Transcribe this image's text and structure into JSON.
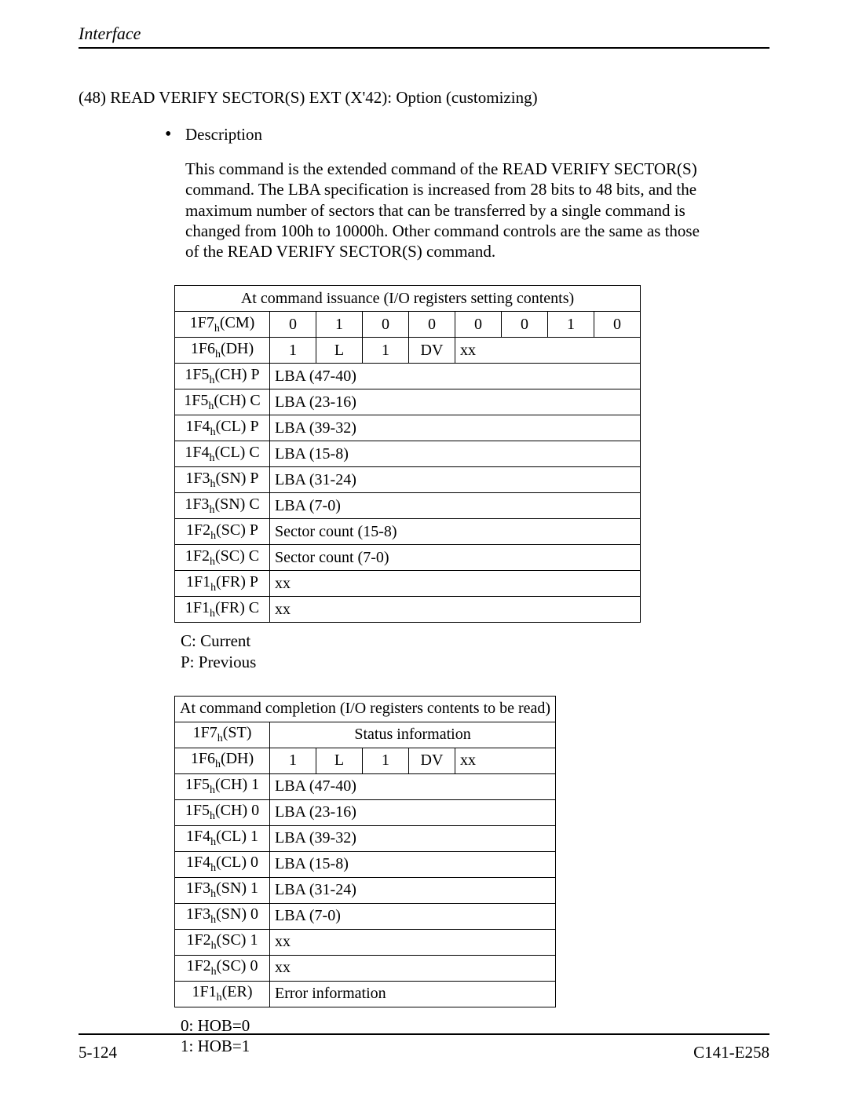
{
  "header": {
    "title": "Interface"
  },
  "section": {
    "heading": "(48)  READ VERIFY SECTOR(S) EXT (X'42):  Option (customizing)",
    "bullet_label": "Description",
    "paragraph": "This command is the extended command of the READ VERIFY SECTOR(S) command.  The LBA specification is increased from 28 bits to 48 bits, and the maximum number of sectors that can be transferred by a single command is changed from 100h to 10000h.  Other command controls are the same as those of the READ VERIFY SECTOR(S) command."
  },
  "table1": {
    "title": "At command issuance (I/O registers setting contents)",
    "rows": {
      "cm": {
        "reg": "1F7",
        "code": "CM",
        "suffix": "",
        "bits": [
          "0",
          "1",
          "0",
          "0",
          "0",
          "0",
          "1",
          "0"
        ]
      },
      "dh": {
        "reg": "1F6",
        "code": "DH",
        "suffix": "",
        "bits": [
          "1",
          "L",
          "1",
          "DV",
          "xx"
        ]
      },
      "chp": {
        "reg": "1F5",
        "code": "CH",
        "suffix": "P",
        "val": "LBA (47-40)"
      },
      "chc": {
        "reg": "1F5",
        "code": "CH",
        "suffix": "C",
        "val": "LBA (23-16)"
      },
      "clp": {
        "reg": "1F4",
        "code": "CL",
        "suffix": "P",
        "val": "LBA (39-32)"
      },
      "clc": {
        "reg": "1F4",
        "code": "CL",
        "suffix": "C",
        "val": "LBA (15-8)"
      },
      "snp": {
        "reg": "1F3",
        "code": "SN",
        "suffix": "P",
        "val": "LBA (31-24)"
      },
      "snc": {
        "reg": "1F3",
        "code": "SN",
        "suffix": "C",
        "val": "LBA (7-0)"
      },
      "scp": {
        "reg": "1F2",
        "code": "SC",
        "suffix": "P",
        "val": "Sector count (15-8)"
      },
      "scc": {
        "reg": "1F2",
        "code": "SC",
        "suffix": "C",
        "val": "Sector count (7-0)"
      },
      "frp": {
        "reg": "1F1",
        "code": "FR",
        "suffix": "P",
        "val": "xx"
      },
      "frc": {
        "reg": "1F1",
        "code": "FR",
        "suffix": "C",
        "val": "xx"
      }
    }
  },
  "legend1": {
    "line1": "C:  Current",
    "line2": "P:  Previous"
  },
  "table2": {
    "title": "At command completion (I/O registers contents to be read)",
    "rows": {
      "st": {
        "reg": "1F7",
        "code": "ST",
        "suffix": "",
        "val": "Status information"
      },
      "dh": {
        "reg": "1F6",
        "code": "DH",
        "suffix": "",
        "bits": [
          "1",
          "L",
          "1",
          "DV",
          "xx"
        ]
      },
      "ch1": {
        "reg": "1F5",
        "code": "CH",
        "suffix": "1",
        "val": "LBA (47-40)"
      },
      "ch0": {
        "reg": "1F5",
        "code": "CH",
        "suffix": "0",
        "val": "LBA (23-16)"
      },
      "cl1": {
        "reg": "1F4",
        "code": "CL",
        "suffix": "1",
        "val": "LBA (39-32)"
      },
      "cl0": {
        "reg": "1F4",
        "code": "CL",
        "suffix": "0",
        "val": "LBA (15-8)"
      },
      "sn1": {
        "reg": "1F3",
        "code": "SN",
        "suffix": "1",
        "val": "LBA (31-24)"
      },
      "sn0": {
        "reg": "1F3",
        "code": "SN",
        "suffix": "0",
        "val": "LBA (7-0)"
      },
      "sc1": {
        "reg": "1F2",
        "code": "SC",
        "suffix": "1",
        "val": "xx"
      },
      "sc0": {
        "reg": "1F2",
        "code": "SC",
        "suffix": "0",
        "val": "xx"
      },
      "er": {
        "reg": "1F1",
        "code": "ER",
        "suffix": "",
        "val": "Error information"
      }
    }
  },
  "legend2": {
    "line1": "0:  HOB=0",
    "line2": "1:  HOB=1"
  },
  "footer": {
    "left": "5-124",
    "right": "C141-E258"
  }
}
